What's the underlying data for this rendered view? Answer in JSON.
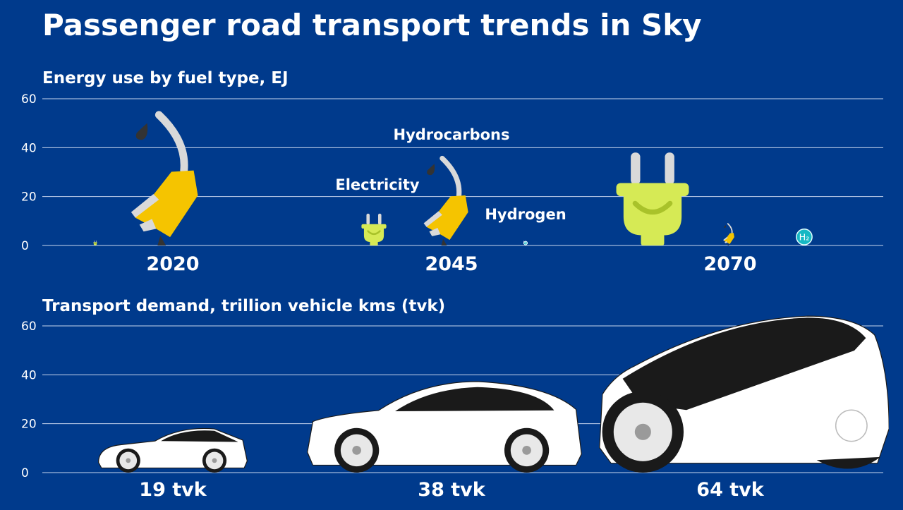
{
  "title": "Passenger road transport trends in Sky",
  "colors": {
    "background": "#003a8c",
    "gridline": "#c9d6ee",
    "hydrocarbons": "#f5c400",
    "electricity": "#d6ea55",
    "hydrogen": "#17b8c4",
    "car_body": "#ffffff",
    "car_glass": "#1a1a1a"
  },
  "icons": {
    "hydrocarbons": "fuel-nozzle-icon",
    "electricity": "electric-plug-icon",
    "hydrogen": "h2-circle-icon",
    "demand": "car-icon"
  },
  "chart_data": [
    {
      "type": "bar",
      "title": "Energy use by fuel type, EJ",
      "categories": [
        "2020",
        "2045",
        "2070"
      ],
      "ylim": [
        0,
        60
      ],
      "yticks": [
        "0",
        "20",
        "40",
        "60"
      ],
      "grid": true,
      "series": [
        {
          "name": "Electricity",
          "icon": "electric-plug-icon",
          "values": [
            2,
            13,
            38
          ]
        },
        {
          "name": "Hydrocarbons",
          "icon": "fuel-nozzle-icon",
          "values": [
            54,
            36,
            9
          ]
        },
        {
          "name": "Hydrogen",
          "icon": "h2-circle-icon",
          "values": [
            0,
            2,
            7
          ]
        }
      ],
      "annotations": [
        "Electricity",
        "Hydrocarbons",
        "Hydrogen"
      ]
    },
    {
      "type": "bar",
      "title": "Transport demand, trillion vehicle kms (tvk)",
      "categories": [
        "19 tvk",
        "38 tvk",
        "64 tvk"
      ],
      "ylim": [
        0,
        60
      ],
      "yticks": [
        "0",
        "20",
        "40",
        "60"
      ],
      "grid": true,
      "series": [
        {
          "icon": "car-icon",
          "values": [
            19,
            38,
            64
          ]
        }
      ]
    }
  ]
}
